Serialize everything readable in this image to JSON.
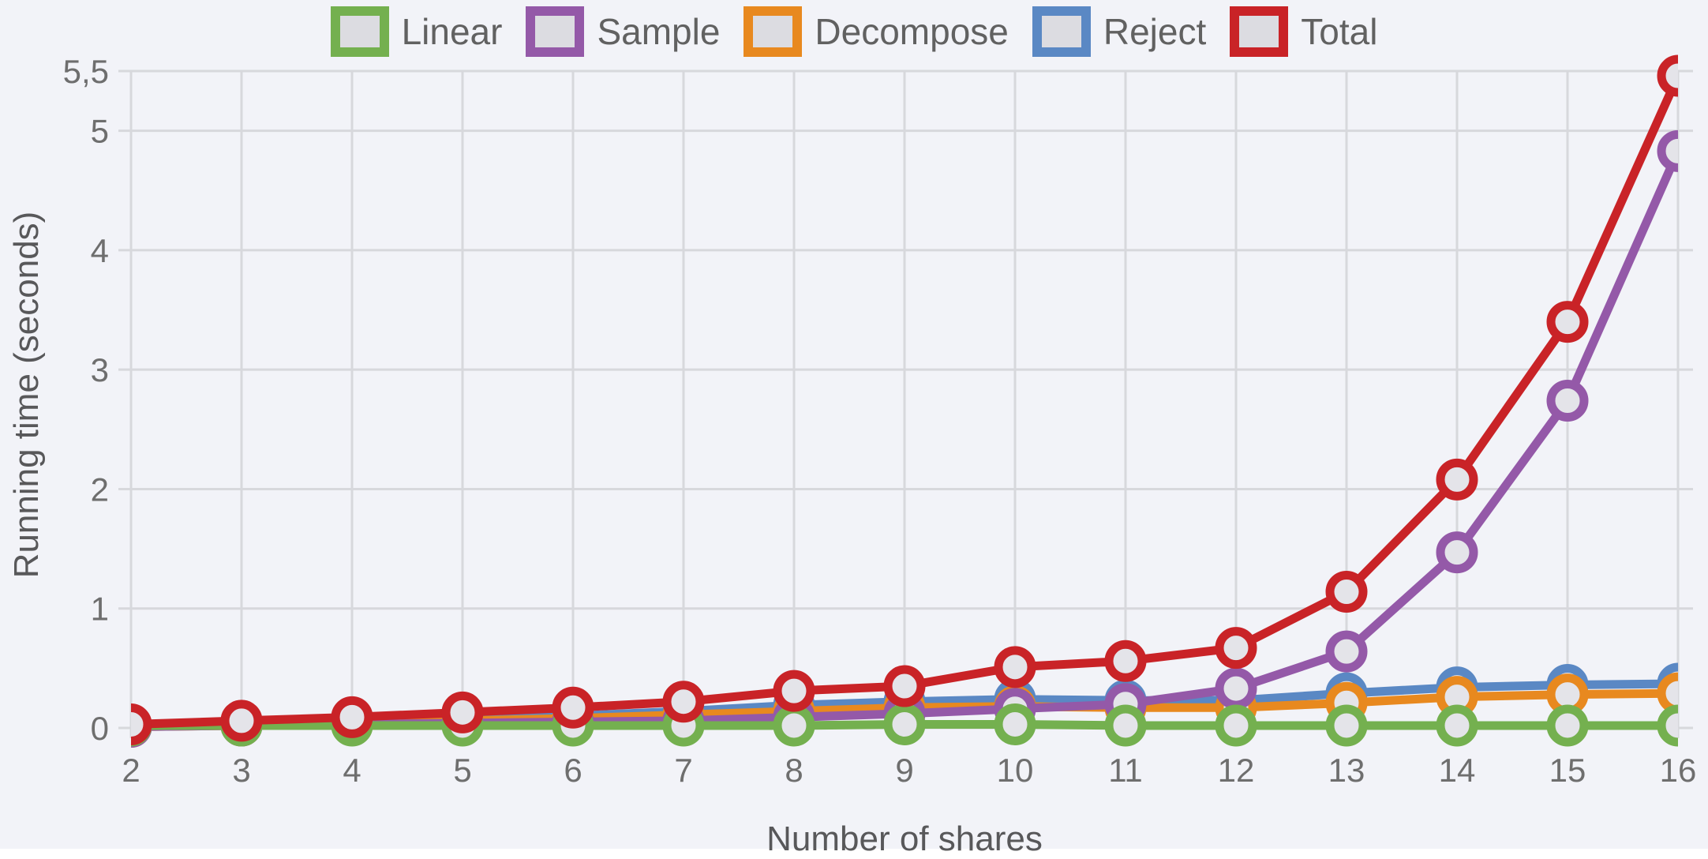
{
  "chart_data": {
    "type": "line",
    "title": "",
    "xlabel": "Number of shares",
    "ylabel": "Running time (seconds)",
    "xlim": [
      2,
      16
    ],
    "ylim": [
      0,
      5.5
    ],
    "grid": true,
    "legend_position": "top",
    "marker": "open-circle",
    "x": [
      2,
      3,
      4,
      5,
      6,
      7,
      8,
      9,
      10,
      11,
      12,
      13,
      14,
      15,
      16
    ],
    "x_tick_labels": [
      "2",
      "3",
      "4",
      "5",
      "6",
      "7",
      "8",
      "9",
      "10",
      "11",
      "12",
      "13",
      "14",
      "15",
      "16"
    ],
    "y_ticks": [
      {
        "value": 0,
        "label": "0"
      },
      {
        "value": 1,
        "label": "1"
      },
      {
        "value": 2,
        "label": "2"
      },
      {
        "value": 3,
        "label": "3"
      },
      {
        "value": 4,
        "label": "4"
      },
      {
        "value": 5,
        "label": "5"
      },
      {
        "value": 5.5,
        "label": "5,5"
      }
    ],
    "series": [
      {
        "name": "Linear",
        "color": "#74b04f",
        "values": [
          0.02,
          0.02,
          0.02,
          0.02,
          0.02,
          0.02,
          0.02,
          0.03,
          0.03,
          0.02,
          0.02,
          0.02,
          0.02,
          0.02,
          0.02
        ]
      },
      {
        "name": "Sample",
        "color": "#9459a8",
        "values": [
          0.01,
          0.02,
          0.03,
          0.04,
          0.05,
          0.06,
          0.09,
          0.12,
          0.16,
          0.2,
          0.33,
          0.64,
          1.47,
          2.74,
          4.83
        ]
      },
      {
        "name": "Decompose",
        "color": "#e8891f",
        "values": [
          0.01,
          0.02,
          0.04,
          0.06,
          0.08,
          0.11,
          0.14,
          0.17,
          0.18,
          0.17,
          0.17,
          0.21,
          0.26,
          0.28,
          0.29
        ]
      },
      {
        "name": "Reject",
        "color": "#5a88c4",
        "values": [
          0.01,
          0.03,
          0.05,
          0.07,
          0.1,
          0.14,
          0.19,
          0.22,
          0.24,
          0.23,
          0.23,
          0.29,
          0.34,
          0.36,
          0.37
        ]
      },
      {
        "name": "Total",
        "color": "#c92327",
        "values": [
          0.03,
          0.06,
          0.09,
          0.13,
          0.17,
          0.22,
          0.31,
          0.35,
          0.51,
          0.56,
          0.67,
          1.14,
          2.08,
          3.4,
          5.46
        ]
      }
    ],
    "draw_order": [
      "Reject",
      "Decompose",
      "Sample",
      "Linear",
      "Total"
    ]
  },
  "styles": {
    "background": "#f2f3f8",
    "grid_color": "#d7d8dc",
    "tick_text_color": "#6e6e6e",
    "axis_title_color": "#58585a",
    "legend_text_color": "#616161",
    "marker_fill": "#e4e4e9",
    "swatch_fill": "#dcdce1"
  }
}
